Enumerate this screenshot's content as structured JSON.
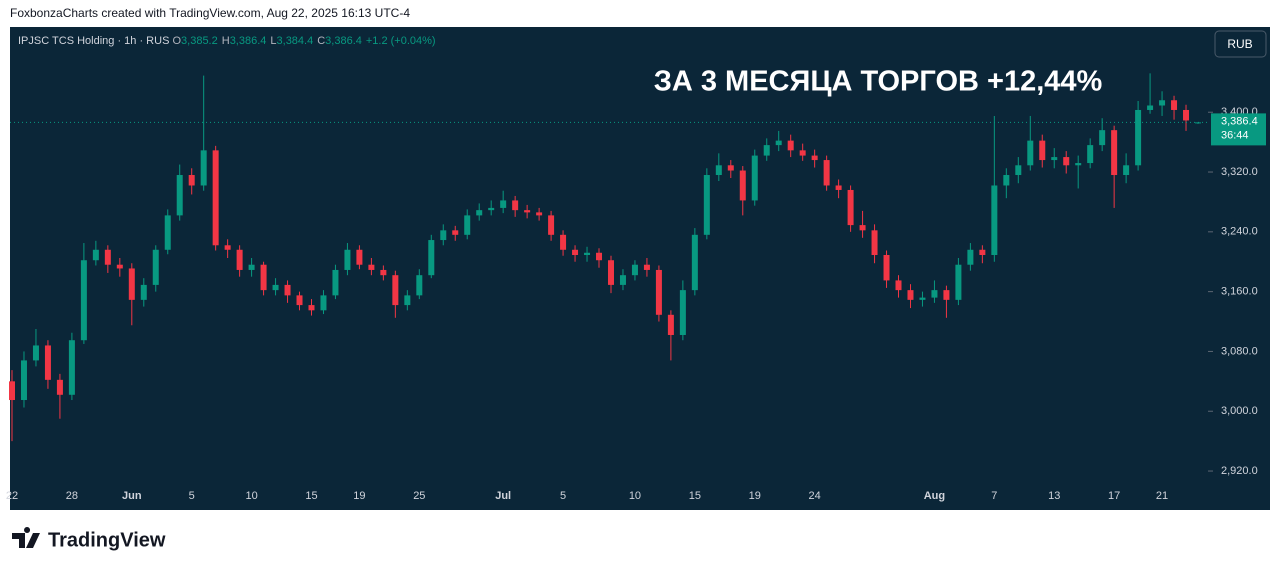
{
  "header": {
    "credit": "FoxbonzaCharts created with TradingView.com, Aug 22, 2025 16:13 UTC-4"
  },
  "chart_data": {
    "type": "candlestick",
    "title": "IPJSC TCS Holding · 1h · RUS",
    "ohlc_legend": [
      {
        "key": "O",
        "value": "3,385.2"
      },
      {
        "key": "H",
        "value": "3,386.4"
      },
      {
        "key": "L",
        "value": "3,384.4"
      },
      {
        "key": "C",
        "value": "3,386.4"
      }
    ],
    "change": "+1.2 (+0.04%)",
    "annotation": "ЗА 3 МЕСЯЦА ТОРГОВ +12,44%",
    "currency": "RUB",
    "last_price_label": "3,386.4",
    "countdown": "36:44",
    "categories": [
      "22",
      null,
      null,
      null,
      null,
      "28",
      null,
      null,
      null,
      null,
      "Jun",
      null,
      null,
      null,
      null,
      "5",
      null,
      null,
      null,
      null,
      "10",
      null,
      null,
      null,
      null,
      "15",
      null,
      null,
      null,
      "19",
      null,
      null,
      null,
      null,
      "25",
      null,
      null,
      null,
      null,
      null,
      null,
      "Jul",
      null,
      null,
      null,
      null,
      "5",
      null,
      null,
      null,
      null,
      null,
      "10",
      null,
      null,
      null,
      null,
      "15",
      null,
      null,
      null,
      null,
      "19",
      null,
      null,
      null,
      null,
      "24",
      null,
      null,
      null,
      null,
      null,
      null,
      null,
      null,
      null,
      "Aug",
      null,
      null,
      null,
      null,
      "7",
      null,
      null,
      null,
      null,
      "13",
      null,
      null,
      null,
      null,
      "17",
      null,
      null,
      null,
      "21",
      null,
      null,
      null
    ],
    "open": [
      3040,
      3015,
      3068,
      3088,
      3042,
      3022,
      3095,
      3202,
      3216,
      3196,
      3191,
      3149,
      3169,
      3216,
      3262,
      3316,
      3302,
      3349,
      3222,
      3216,
      3189,
      3196,
      3162,
      3169,
      3155,
      3142,
      3135,
      3155,
      3189,
      3216,
      3196,
      3189,
      3182,
      3142,
      3155,
      3182,
      3229,
      3242,
      3236,
      3262,
      3269,
      3272,
      3282,
      3269,
      3266,
      3262,
      3236,
      3216,
      3209,
      3212,
      3202,
      3169,
      3182,
      3196,
      3189,
      3129,
      3102,
      3162,
      3236,
      3316,
      3329,
      3322,
      3282,
      3342,
      3356,
      3362,
      3349,
      3342,
      3336,
      3302,
      3296,
      3249,
      3242,
      3209,
      3175,
      3162,
      3149,
      3152,
      3162,
      3149,
      3196,
      3216,
      3209,
      3302,
      3316,
      3329,
      3362,
      3336,
      3340,
      3329,
      3332,
      3356,
      3376,
      3316,
      3329,
      3403,
      3409,
      3416,
      3403,
      3385.2
    ],
    "high": [
      3055,
      3080,
      3110,
      3095,
      3050,
      3105,
      3225,
      3228,
      3222,
      3205,
      3198,
      3178,
      3222,
      3270,
      3330,
      3325,
      3449,
      3355,
      3230,
      3222,
      3205,
      3200,
      3178,
      3175,
      3160,
      3150,
      3162,
      3196,
      3225,
      3222,
      3205,
      3195,
      3188,
      3162,
      3190,
      3236,
      3250,
      3248,
      3270,
      3278,
      3282,
      3295,
      3288,
      3276,
      3272,
      3268,
      3242,
      3222,
      3220,
      3218,
      3208,
      3190,
      3202,
      3205,
      3195,
      3135,
      3175,
      3245,
      3325,
      3345,
      3336,
      3328,
      3350,
      3365,
      3375,
      3370,
      3358,
      3350,
      3342,
      3310,
      3302,
      3268,
      3250,
      3215,
      3182,
      3170,
      3160,
      3175,
      3168,
      3205,
      3225,
      3222,
      3395,
      3325,
      3340,
      3395,
      3370,
      3352,
      3348,
      3342,
      3365,
      3392,
      3382,
      3345,
      3415,
      3452,
      3428,
      3422,
      3410,
      3386.4
    ],
    "low": [
      2960,
      3005,
      3060,
      3030,
      2990,
      3015,
      3090,
      3195,
      3185,
      3180,
      3115,
      3140,
      3160,
      3210,
      3255,
      3290,
      3295,
      3215,
      3205,
      3180,
      3180,
      3155,
      3155,
      3145,
      3135,
      3128,
      3130,
      3150,
      3182,
      3190,
      3182,
      3175,
      3125,
      3135,
      3150,
      3178,
      3222,
      3228,
      3230,
      3255,
      3262,
      3265,
      3260,
      3258,
      3255,
      3228,
      3208,
      3200,
      3200,
      3192,
      3158,
      3162,
      3175,
      3180,
      3120,
      3068,
      3095,
      3155,
      3230,
      3308,
      3312,
      3262,
      3275,
      3335,
      3348,
      3340,
      3335,
      3326,
      3295,
      3285,
      3240,
      3232,
      3198,
      3165,
      3152,
      3138,
      3140,
      3145,
      3125,
      3142,
      3188,
      3198,
      3200,
      3285,
      3305,
      3322,
      3326,
      3325,
      3318,
      3298,
      3325,
      3348,
      3272,
      3305,
      3322,
      3398,
      3395,
      3390,
      3375,
      3384.4
    ],
    "close": [
      3015,
      3068,
      3088,
      3042,
      3022,
      3095,
      3202,
      3216,
      3196,
      3191,
      3149,
      3169,
      3216,
      3262,
      3316,
      3302,
      3349,
      3222,
      3216,
      3189,
      3196,
      3162,
      3169,
      3155,
      3142,
      3135,
      3155,
      3189,
      3216,
      3196,
      3189,
      3182,
      3142,
      3155,
      3182,
      3229,
      3242,
      3236,
      3262,
      3269,
      3272,
      3282,
      3269,
      3266,
      3262,
      3236,
      3216,
      3209,
      3212,
      3202,
      3169,
      3182,
      3196,
      3189,
      3129,
      3102,
      3162,
      3236,
      3316,
      3329,
      3322,
      3282,
      3342,
      3356,
      3362,
      3349,
      3342,
      3336,
      3302,
      3296,
      3249,
      3242,
      3209,
      3175,
      3162,
      3149,
      3152,
      3162,
      3149,
      3196,
      3216,
      3209,
      3302,
      3316,
      3329,
      3362,
      3336,
      3340,
      3329,
      3332,
      3356,
      3376,
      3316,
      3329,
      3403,
      3409,
      3416,
      3403,
      3389,
      3386.4
    ],
    "up_color": "#089981",
    "down_color": "#f23645",
    "background": "#0b2638",
    "ylim": [
      2904,
      3514
    ],
    "yticks": [
      {
        "value": 2920,
        "label": "2,920.0"
      },
      {
        "value": 3000,
        "label": "3,000.0"
      },
      {
        "value": 3080,
        "label": "3,080.0"
      },
      {
        "value": 3160,
        "label": "3,160.0"
      },
      {
        "value": 3240,
        "label": "3,240.0"
      },
      {
        "value": 3320,
        "label": "3,320.0"
      },
      {
        "value": 3400,
        "label": "3,400.0"
      }
    ],
    "grid": false
  },
  "footer": {
    "brand": "TradingView"
  }
}
